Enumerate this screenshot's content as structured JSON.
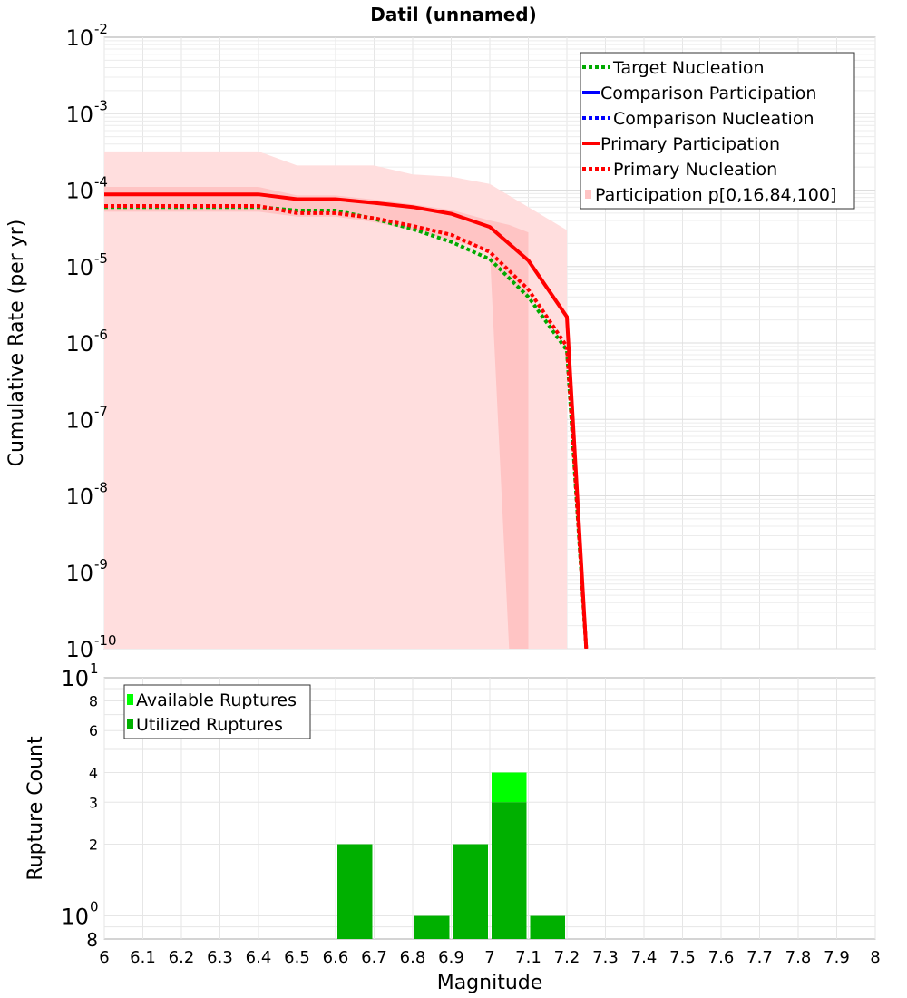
{
  "chart_data": [
    {
      "type": "line",
      "title": "Datil (unnamed)",
      "xlabel": "",
      "ylabel": "Cumulative Rate (per yr)",
      "xlim": [
        6,
        8
      ],
      "ylim": [
        1e-10,
        0.01
      ],
      "yscale": "log",
      "y_ticks": [
        {
          "base": "10",
          "exp": "-2"
        },
        {
          "base": "10",
          "exp": "-3"
        },
        {
          "base": "10",
          "exp": "-4"
        },
        {
          "base": "10",
          "exp": "-5"
        },
        {
          "base": "10",
          "exp": "-6"
        },
        {
          "base": "10",
          "exp": "-7"
        },
        {
          "base": "10",
          "exp": "-8"
        },
        {
          "base": "10",
          "exp": "-9"
        },
        {
          "base": "10",
          "exp": "-10"
        }
      ],
      "grid": true,
      "legend_position": "top-right",
      "legend": [
        "Target Nucleation",
        "Comparison Participation",
        "Comparison Nucleation",
        "Primary Participation",
        "Primary Nucleation",
        "Participation p[0,16,84,100]"
      ],
      "colors": {
        "target": "#00aa00",
        "comparison": "#0000ff",
        "primary": "#ff0000",
        "band_outer": "#ffdede",
        "band_inner": "#ffc4c4"
      },
      "bands": {
        "outer": {
          "x": [
            6.0,
            6.4,
            6.5,
            6.6,
            6.7,
            6.8,
            6.9,
            7.0,
            7.1,
            7.2
          ],
          "low": [
            1e-10,
            1e-10,
            1e-10,
            1e-10,
            1e-10,
            1e-10,
            1e-10,
            1e-10,
            1e-10,
            1e-10
          ],
          "high": [
            0.00032,
            0.00032,
            0.00021,
            0.00021,
            0.00021,
            0.00016,
            0.00015,
            0.00012,
            6e-05,
            3e-05
          ]
        },
        "inner": {
          "x": [
            6.0,
            6.4,
            6.5,
            6.6,
            6.7,
            6.8,
            6.9,
            7.0,
            7.05,
            7.1
          ],
          "low": [
            5.2e-05,
            5.2e-05,
            4.5e-05,
            4.5e-05,
            3.8e-05,
            3e-05,
            2.2e-05,
            1.6e-05,
            1e-10,
            1e-10
          ],
          "high": [
            0.00011,
            0.00011,
            8.5e-05,
            8.5e-05,
            7.5e-05,
            6.5e-05,
            5.5e-05,
            4e-05,
            3.5e-05,
            2.8e-05
          ]
        }
      },
      "series": [
        {
          "name": "Target Nucleation",
          "style": "dotted",
          "color": "#00aa00",
          "x": [
            6.0,
            6.4,
            6.5,
            6.6,
            6.7,
            6.8,
            6.9,
            7.0,
            7.1,
            7.2,
            7.25
          ],
          "y": [
            6e-05,
            6e-05,
            5.4e-05,
            5.4e-05,
            4.2e-05,
            3.1e-05,
            2.1e-05,
            1.25e-05,
            4e-06,
            8e-07,
            1e-10
          ]
        },
        {
          "name": "Primary Participation",
          "style": "solid",
          "color": "#ff0000",
          "x": [
            6.0,
            6.4,
            6.5,
            6.6,
            6.7,
            6.8,
            6.9,
            7.0,
            7.1,
            7.2,
            7.25
          ],
          "y": [
            8.8e-05,
            8.8e-05,
            7.6e-05,
            7.6e-05,
            6.8e-05,
            6e-05,
            4.9e-05,
            3.3e-05,
            1.2e-05,
            2.2e-06,
            1e-10
          ]
        },
        {
          "name": "Primary Nucleation",
          "style": "dotted",
          "color": "#ff0000",
          "x": [
            6.0,
            6.4,
            6.5,
            6.6,
            6.7,
            6.8,
            6.9,
            7.0,
            7.1,
            7.2,
            7.25
          ],
          "y": [
            6.2e-05,
            6.2e-05,
            5e-05,
            5e-05,
            4.3e-05,
            3.4e-05,
            2.6e-05,
            1.55e-05,
            5e-06,
            9e-07,
            1e-10
          ]
        }
      ]
    },
    {
      "type": "bar",
      "title": "",
      "xlabel": "Magnitude",
      "ylabel": "Rupture Count",
      "xlim": [
        6,
        8
      ],
      "x_ticks": [
        "6",
        "6.1",
        "6.2",
        "6.3",
        "6.4",
        "6.5",
        "6.6",
        "6.7",
        "6.8",
        "6.9",
        "7",
        "7.1",
        "7.2",
        "7.3",
        "7.4",
        "7.5",
        "7.6",
        "7.7",
        "7.8",
        "7.9",
        "8"
      ],
      "yscale": "log",
      "ylim": [
        0.8,
        10
      ],
      "y_ticks": [
        {
          "value": 10,
          "base": "10",
          "exp": "1"
        },
        {
          "value": 8,
          "label": "8"
        },
        {
          "value": 6,
          "label": "6"
        },
        {
          "value": 4,
          "label": "4"
        },
        {
          "value": 3,
          "label": "3"
        },
        {
          "value": 2,
          "label": "2"
        },
        {
          "value": 1,
          "base": "10",
          "exp": "0"
        },
        {
          "value": 0.8,
          "label": "8"
        }
      ],
      "grid": true,
      "legend_position": "top-left",
      "legend": [
        "Available Ruptures",
        "Utilized Ruptures"
      ],
      "colors": {
        "available": "#00ff00",
        "utilized": "#00b000"
      },
      "bin_width": 0.1,
      "bins": [
        {
          "x": 6.65,
          "available": 2,
          "utilized": 2
        },
        {
          "x": 6.85,
          "available": 1,
          "utilized": 1
        },
        {
          "x": 6.95,
          "available": 2,
          "utilized": 2
        },
        {
          "x": 7.05,
          "available": 4,
          "utilized": 3
        },
        {
          "x": 7.15,
          "available": 1,
          "utilized": 1
        }
      ]
    }
  ]
}
